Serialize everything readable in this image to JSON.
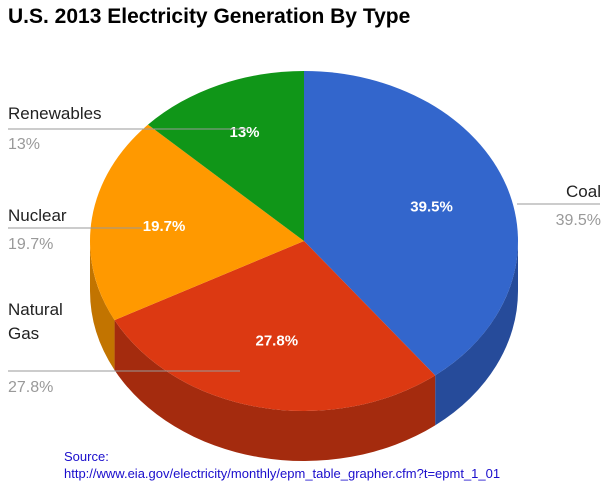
{
  "chart_data": {
    "type": "pie",
    "title": "U.S. 2013 Electricity Generation By Type",
    "slices": [
      {
        "label": "Coal",
        "value": 39.5,
        "display": "39.5%",
        "color": "#3366cc",
        "side_color": "#264b9a",
        "label_lines": [
          "Coal"
        ]
      },
      {
        "label": "Natural Gas",
        "value": 27.8,
        "display": "27.8%",
        "color": "#dc3912",
        "side_color": "#a42b0e",
        "label_lines": [
          "Natural",
          "Gas"
        ]
      },
      {
        "label": "Nuclear",
        "value": 19.7,
        "display": "19.7%",
        "color": "#ff9900",
        "side_color": "#c27400",
        "label_lines": [
          "Nuclear"
        ]
      },
      {
        "label": "Renewables",
        "value": 13,
        "display": "13%",
        "color": "#109618",
        "side_color": "#0b6e11",
        "label_lines": [
          "Renewables"
        ]
      }
    ],
    "legend": "labeled"
  },
  "source": {
    "label": "Source:",
    "url": "http://www.eia.gov/electricity/monthly/epm_table_grapher.cfm?t=epmt_1_01"
  },
  "colors": {
    "leader_line": "#999999",
    "label_text": "#222222",
    "percent_text": "#999999",
    "inside_text": "#ffffff",
    "source_text": "#1a0dcc"
  }
}
